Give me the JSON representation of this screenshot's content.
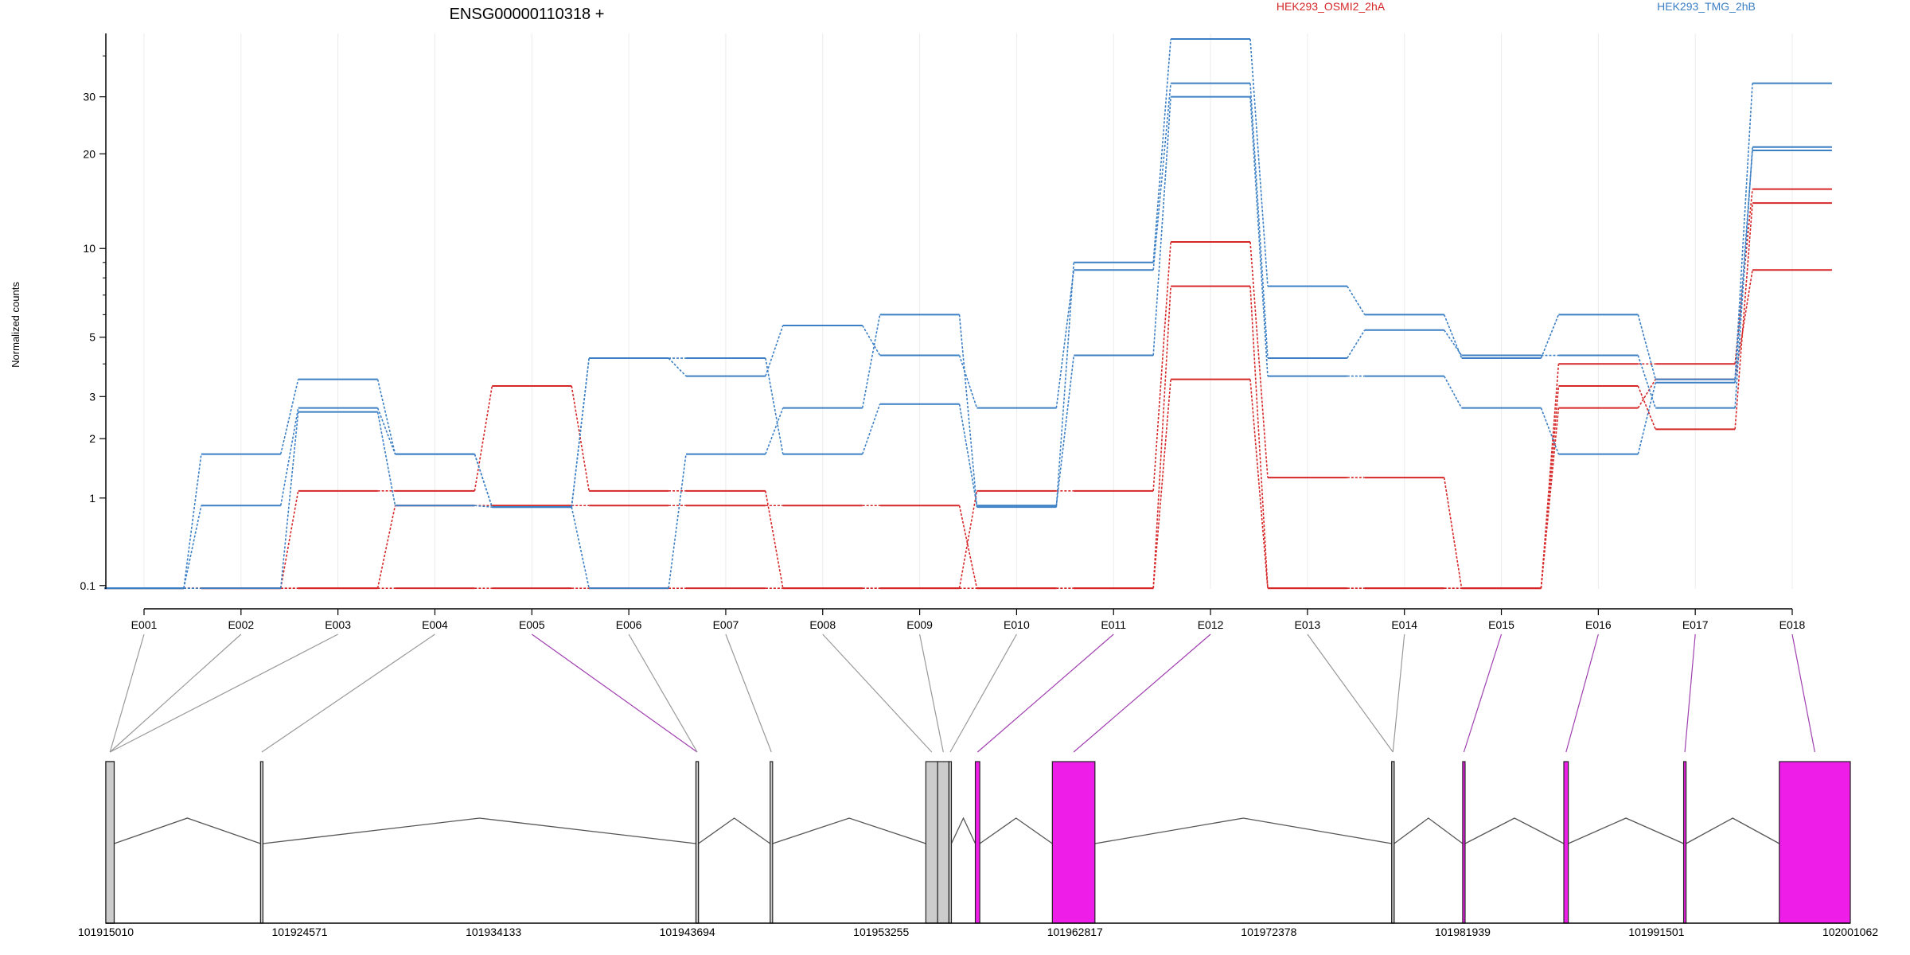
{
  "colors": {
    "series_a": "#d62728",
    "series_b": "#3b7fc4",
    "exon_plain": "#cccccc",
    "exon_highlight": "#ee1ee8",
    "connector_plain": "#999999",
    "connector_highlight": "#a040b0",
    "intron": "#555555",
    "grid": "#ececec",
    "axis": "#000000"
  },
  "chart_data": {
    "type": "line",
    "title": "ENSG00000110318 +",
    "ylabel": "Normalized counts",
    "xlabel": "",
    "y_scale": "log1p",
    "ylim": [
      0.1,
      45
    ],
    "yticks": [
      0.1,
      1,
      2,
      3,
      5,
      10,
      20,
      30
    ],
    "ytick_labels": [
      "0.1",
      "1",
      "2",
      "3",
      "5",
      "10",
      "20",
      "30"
    ],
    "categories": [
      "E001",
      "E002",
      "E003",
      "E004",
      "E005",
      "E006",
      "E007",
      "E008",
      "E009",
      "E010",
      "E011",
      "E012",
      "E013",
      "E014",
      "E015",
      "E016",
      "E017",
      "E018"
    ],
    "grid": true,
    "legend": "top",
    "legend_entries": [
      "HEK293_OSMI2_2hA",
      "HEK293_TMG_2hB"
    ],
    "series": [
      {
        "group": "HEK293_OSMI2_2hA",
        "values": [
          0.08,
          0.08,
          1.1,
          1.1,
          3.3,
          1.1,
          1.1,
          0.08,
          0.08,
          1.1,
          1.1,
          10.5,
          1.3,
          1.3,
          0.08,
          4.0,
          4.0,
          15.5
        ]
      },
      {
        "group": "HEK293_OSMI2_2hA",
        "values": [
          0.08,
          0.08,
          0.08,
          0.9,
          0.9,
          0.9,
          0.9,
          0.9,
          0.9,
          0.08,
          0.08,
          7.5,
          0.08,
          0.08,
          0.08,
          3.3,
          2.2,
          14.0
        ]
      },
      {
        "group": "HEK293_OSMI2_2hA",
        "values": [
          0.08,
          0.08,
          0.08,
          0.08,
          0.08,
          0.08,
          0.08,
          0.08,
          0.08,
          0.08,
          0.08,
          3.5,
          0.08,
          0.08,
          0.08,
          2.7,
          3.5,
          8.5
        ]
      },
      {
        "group": "HEK293_TMG_2hB",
        "values": [
          0.08,
          1.7,
          3.5,
          1.7,
          0.88,
          0.08,
          1.7,
          2.7,
          6.0,
          0.88,
          9.0,
          45,
          7.5,
          6.0,
          4.2,
          6.0,
          3.5,
          33
        ]
      },
      {
        "group": "HEK293_TMG_2hB",
        "values": [
          0.08,
          0.9,
          2.7,
          1.7,
          0.88,
          4.2,
          3.6,
          5.5,
          4.3,
          2.7,
          8.5,
          33,
          4.2,
          5.3,
          4.3,
          4.3,
          2.7,
          21
        ]
      },
      {
        "group": "HEK293_TMG_2hB",
        "values": [
          0.08,
          0.08,
          2.6,
          0.9,
          0.88,
          4.2,
          4.2,
          1.7,
          2.8,
          0.9,
          4.3,
          30,
          3.6,
          3.6,
          2.7,
          1.7,
          3.4,
          20.5
        ]
      }
    ]
  },
  "gene_model": {
    "coordinate_labels": [
      "101915010",
      "101924571",
      "101934133",
      "101943694",
      "101953255",
      "101962817",
      "101972378",
      "101981939",
      "101991501",
      "102001062"
    ],
    "coord_min": 101915010,
    "coord_max": 102001062,
    "exons": [
      {
        "id": "E001",
        "start": 101915010,
        "end": 101915420,
        "highlight": false
      },
      {
        "id": "E002",
        "start": 101915010,
        "end": 101915420,
        "highlight": false
      },
      {
        "id": "E003",
        "start": 101915010,
        "end": 101915420,
        "highlight": false
      },
      {
        "id": "E004",
        "start": 101922640,
        "end": 101922760,
        "highlight": false
      },
      {
        "id": "E005",
        "start": 101944120,
        "end": 101944240,
        "highlight": true
      },
      {
        "id": "E006",
        "start": 101944120,
        "end": 101944240,
        "highlight": false
      },
      {
        "id": "E007",
        "start": 101947780,
        "end": 101947900,
        "highlight": false
      },
      {
        "id": "E008",
        "start": 101955460,
        "end": 101956040,
        "highlight": false
      },
      {
        "id": "E009",
        "start": 101956040,
        "end": 101956600,
        "highlight": false
      },
      {
        "id": "E010",
        "start": 101956600,
        "end": 101956720,
        "highlight": false
      },
      {
        "id": "E011",
        "start": 101957900,
        "end": 101958120,
        "highlight": true
      },
      {
        "id": "E012",
        "start": 101961700,
        "end": 101963800,
        "highlight": true
      },
      {
        "id": "E013",
        "start": 101978440,
        "end": 101978560,
        "highlight": false
      },
      {
        "id": "E014",
        "start": 101978440,
        "end": 101978560,
        "highlight": false
      },
      {
        "id": "E015",
        "start": 101981940,
        "end": 101982060,
        "highlight": true
      },
      {
        "id": "E016",
        "start": 101986930,
        "end": 101987150,
        "highlight": true
      },
      {
        "id": "E017",
        "start": 101992840,
        "end": 101992960,
        "highlight": true
      },
      {
        "id": "E018",
        "start": 101997560,
        "end": 102001062,
        "highlight": true
      }
    ],
    "introns": [
      [
        101915420,
        101922640
      ],
      [
        101922760,
        101944120
      ],
      [
        101944240,
        101947780
      ],
      [
        101947900,
        101955460
      ],
      [
        101956720,
        101957900
      ],
      [
        101958120,
        101961700
      ],
      [
        101963800,
        101978440
      ],
      [
        101978560,
        101981940
      ],
      [
        101982060,
        101986930
      ],
      [
        101987150,
        101992840
      ],
      [
        101992960,
        101997560
      ]
    ]
  }
}
